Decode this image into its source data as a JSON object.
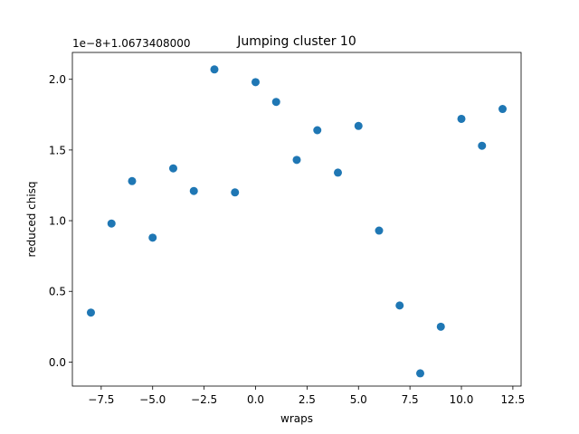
{
  "chart_data": {
    "type": "scatter",
    "title": "Jumping cluster 10",
    "xlabel": "wraps",
    "ylabel": "reduced chisq",
    "offset_text": "1e−8+1.0673408000",
    "xlim": [
      -8.9,
      12.9
    ],
    "ylim": [
      -0.17,
      2.19
    ],
    "xticks": [
      -7.5,
      -5.0,
      -2.5,
      0.0,
      2.5,
      5.0,
      7.5,
      10.0,
      12.5
    ],
    "xtick_labels": [
      "−7.5",
      "−5.0",
      "−2.5",
      "0.0",
      "2.5",
      "5.0",
      "7.5",
      "10.0",
      "12.5"
    ],
    "yticks": [
      0.0,
      0.5,
      1.0,
      1.5,
      2.0
    ],
    "ytick_labels": [
      "0.0",
      "0.5",
      "1.0",
      "1.5",
      "2.0"
    ],
    "grid": false,
    "marker_color": "#1f77b4",
    "series": [
      {
        "x": [
          -8,
          -7,
          -6,
          -5,
          -4,
          -3,
          -2,
          -1,
          0,
          1,
          2,
          3,
          4,
          5,
          6,
          7,
          8,
          9,
          10,
          11,
          12
        ],
        "y": [
          0.35,
          0.98,
          1.28,
          0.88,
          1.37,
          1.21,
          2.07,
          1.2,
          1.98,
          1.84,
          1.43,
          1.64,
          1.34,
          1.67,
          0.93,
          0.4,
          -0.08,
          0.25,
          1.72,
          1.53,
          1.79
        ]
      }
    ]
  }
}
